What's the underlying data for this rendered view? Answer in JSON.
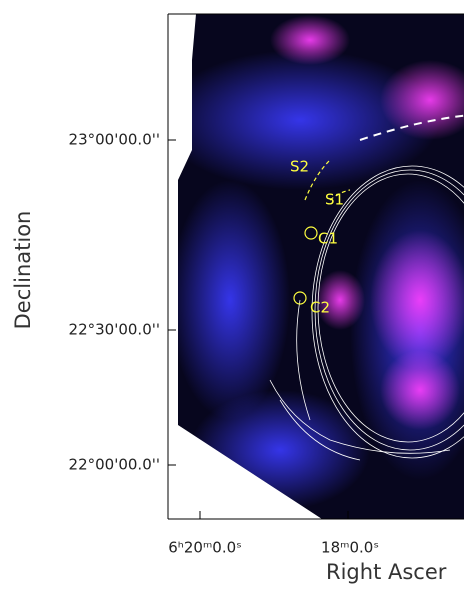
{
  "axes": {
    "y_label": "Declination",
    "x_label": "Right Ascer",
    "y_ticks": [
      "23°00'00.0''",
      "22°30'00.0''",
      "22°00'00.0''"
    ],
    "x_ticks": [
      "6ʰ20ᵐ0.0ˢ",
      "18ᵐ0.0ˢ"
    ]
  },
  "annotations": [
    "S2",
    "S1",
    "C1",
    "C2"
  ]
}
